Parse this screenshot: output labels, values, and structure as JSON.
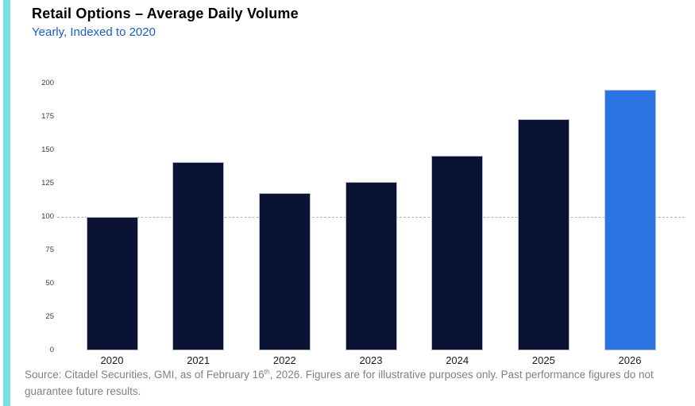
{
  "chart_data": {
    "type": "bar",
    "title": "Retail Options – Average Daily Volume",
    "subtitle": "Yearly, Indexed to 2020",
    "categories": [
      "2020",
      "2021",
      "2022",
      "2023",
      "2024",
      "2025",
      "2026"
    ],
    "values": [
      100,
      141,
      118,
      126,
      146,
      173,
      195
    ],
    "xlabel": "",
    "ylabel": "",
    "ylim": [
      0,
      200
    ],
    "yticks": [
      0,
      25,
      50,
      75,
      100,
      125,
      150,
      175,
      200
    ],
    "reference_line": 100,
    "grid": false,
    "legend": false,
    "bar_color": "#0a1334",
    "highlight_color": "#2d73e2",
    "highlight_index": 6
  },
  "footer": {
    "source_prefix": "Source: Citadel Securities, GMI, as of February 16",
    "source_superscript": "th",
    "source_suffix": ", 2026. Figures are for illustrative purposes only. Past performance figures do not guarantee future results."
  },
  "colors": {
    "accent_stripe": "#7adfe2",
    "subtitle_text": "#1b5cc5",
    "bar": "#0a1334",
    "bar_highlight": "#2d73e2",
    "reference_line": "#b3b3b3",
    "source_text": "#808080",
    "y_axis_label": "#3a3a3a",
    "x_axis_label": "#1a1a1a"
  }
}
